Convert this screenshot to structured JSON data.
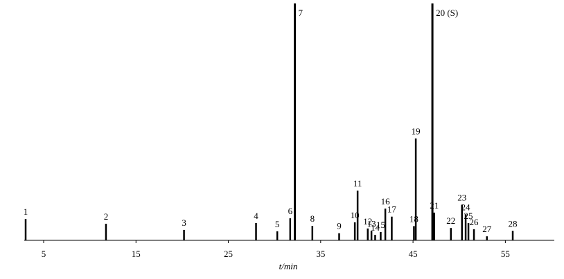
{
  "chart_data": {
    "type": "chromatogram",
    "x_label": "t/min",
    "color": "#000000",
    "x": [
      3.05,
      11.75,
      20.2,
      28.0,
      30.3,
      31.7,
      32.2,
      34.1,
      37.0,
      38.7,
      39.0,
      40.1,
      40.5,
      40.9,
      41.5,
      42.0,
      42.7,
      45.1,
      45.3,
      47.1,
      47.3,
      49.1,
      50.3,
      50.7,
      51.0,
      51.6,
      53.0,
      55.8
    ],
    "values": [
      9,
      7,
      4.4,
      7.3,
      3.8,
      9.3,
      100,
      6.1,
      3,
      7.6,
      21,
      5,
      4,
      2.3,
      3.5,
      13.4,
      10,
      6,
      43,
      100,
      11.7,
      5.2,
      15,
      11,
      7.3,
      4.7,
      1.7,
      4
    ],
    "labels": [
      "1",
      "2",
      "3",
      "4",
      "5",
      "6",
      "7",
      "8",
      "9",
      "10",
      "11",
      "12",
      "13",
      "14",
      "15",
      "16",
      "17",
      "18",
      "19",
      "20 (S)",
      "21",
      "22",
      "23",
      "24",
      "25",
      "26",
      "27",
      "28"
    ],
    "xlim": [
      2.9,
      60.3
    ],
    "xticks": [
      5,
      15,
      25,
      35,
      45,
      55
    ],
    "ylim": [
      0,
      100
    ]
  }
}
